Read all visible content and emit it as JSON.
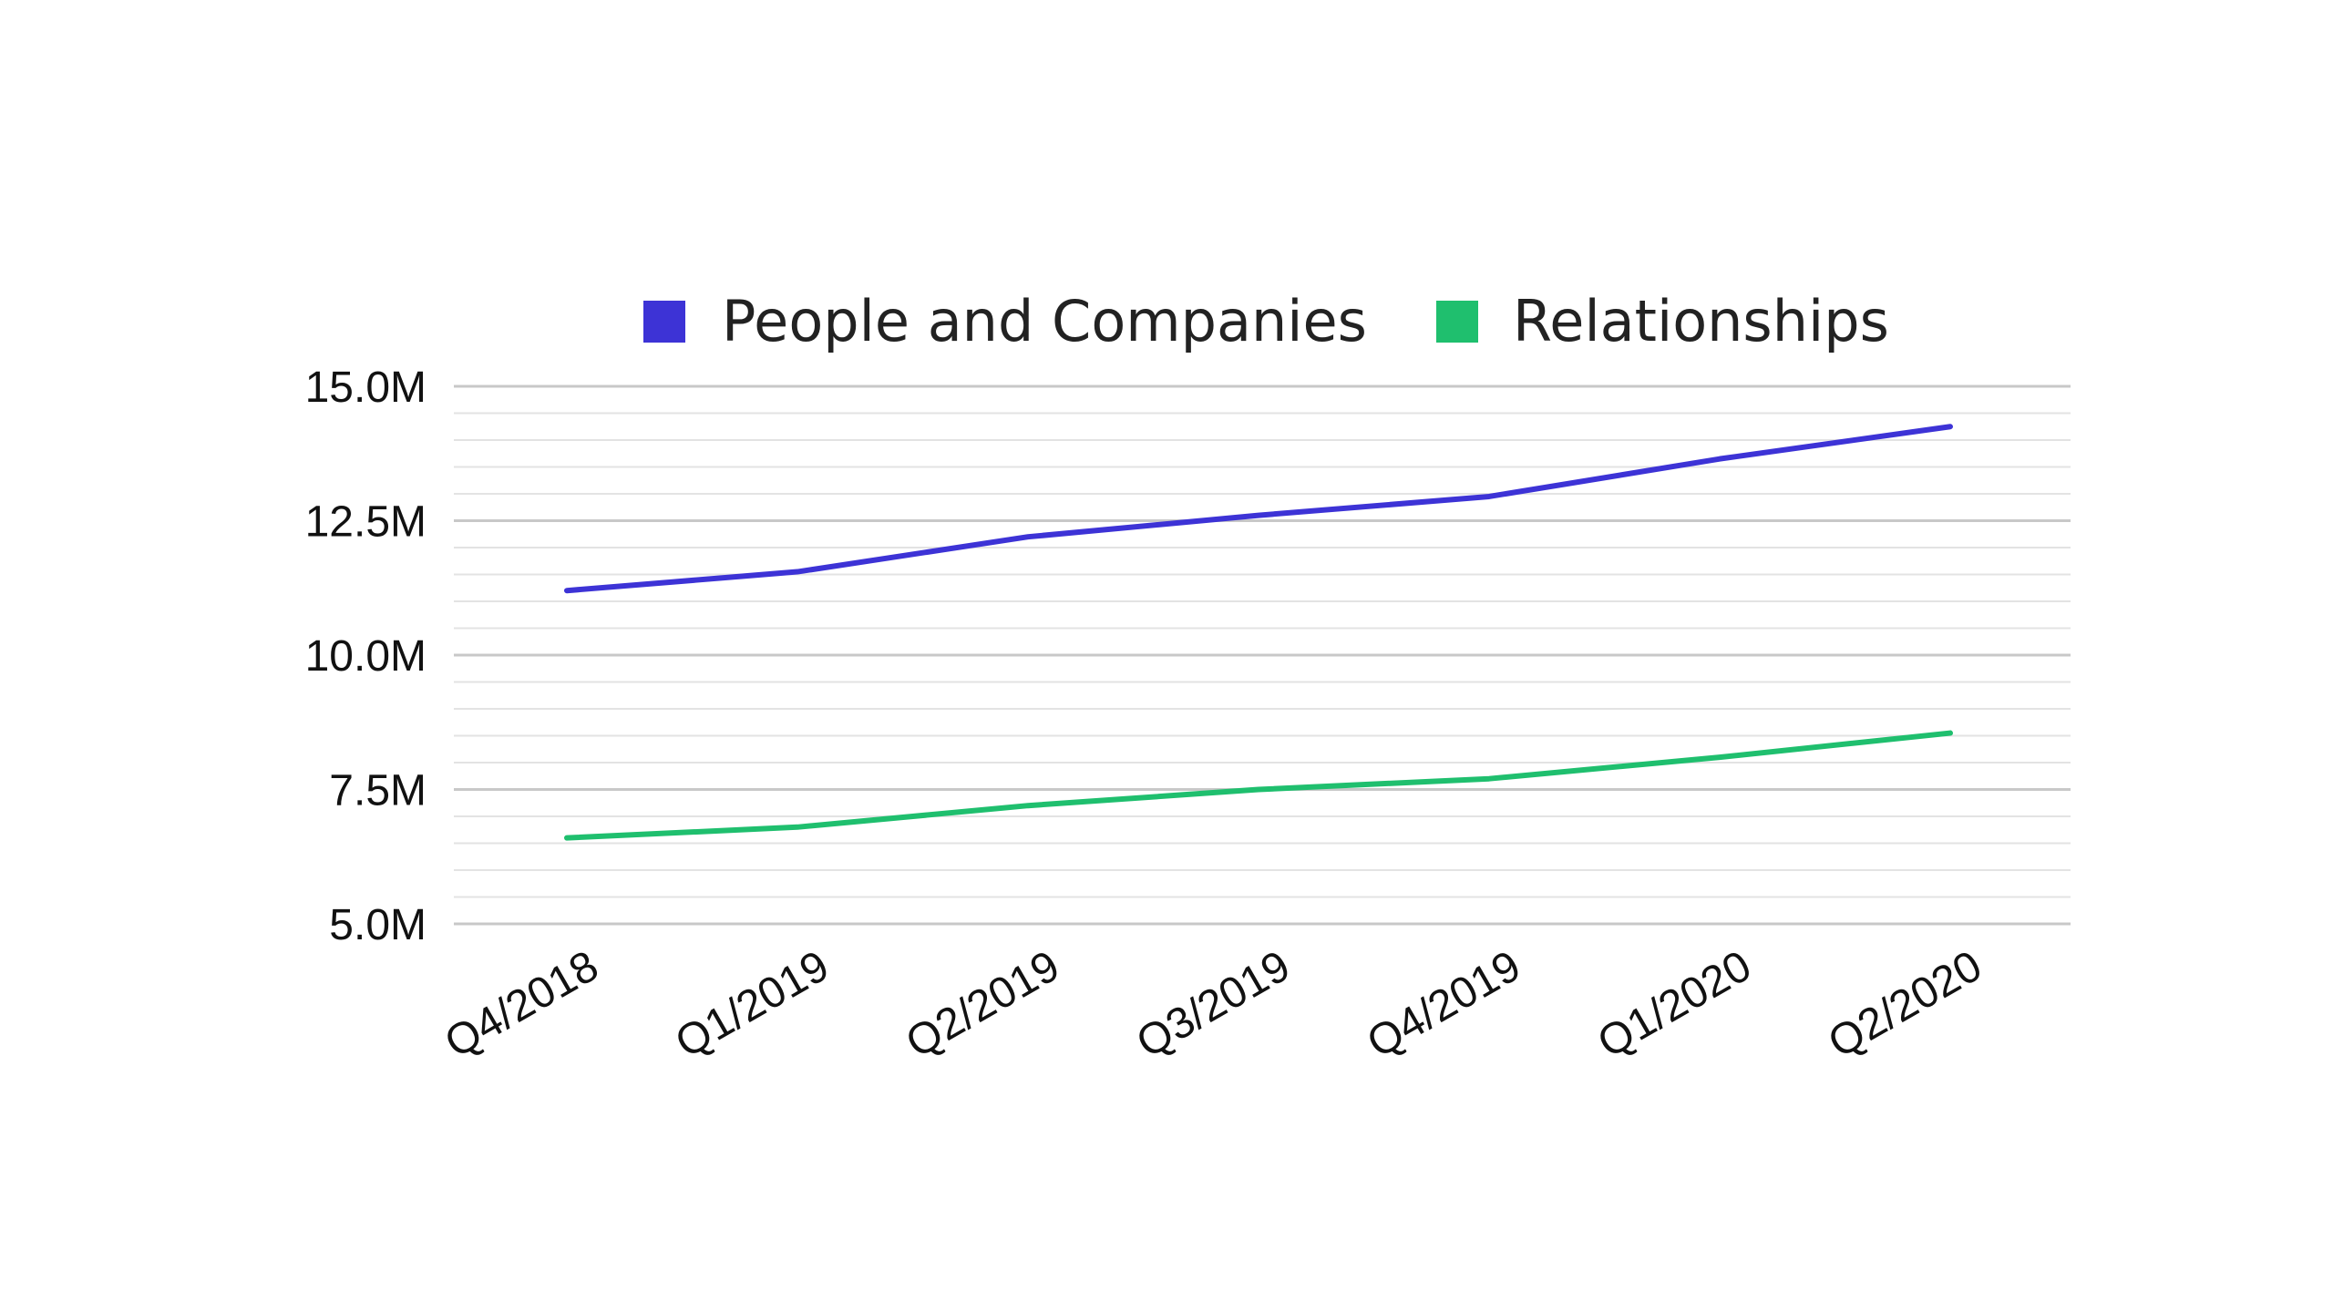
{
  "chart_data": {
    "type": "line",
    "categories": [
      "Q4/2018",
      "Q1/2019",
      "Q2/2019",
      "Q3/2019",
      "Q4/2019",
      "Q1/2020",
      "Q2/2020"
    ],
    "series": [
      {
        "name": "People and Companies",
        "color": "#3d33d6",
        "values": [
          11.2,
          11.55,
          12.2,
          12.6,
          12.95,
          13.65,
          14.25
        ]
      },
      {
        "name": "Relationships",
        "color": "#1fbf6e",
        "values": [
          6.6,
          6.8,
          7.2,
          7.5,
          7.7,
          8.1,
          8.55
        ]
      }
    ],
    "y_ticks": [
      {
        "value": 5.0,
        "label": "5.0M"
      },
      {
        "value": 7.5,
        "label": "7.5M"
      },
      {
        "value": 10.0,
        "label": "10.0M"
      },
      {
        "value": 12.5,
        "label": "12.5M"
      },
      {
        "value": 15.0,
        "label": "15.0M"
      }
    ],
    "ylim": [
      5.0,
      15.0
    ],
    "minor_grid_step": 0.5,
    "grid": true,
    "legend_position": "top",
    "title": "",
    "xlabel": "",
    "ylabel": ""
  }
}
